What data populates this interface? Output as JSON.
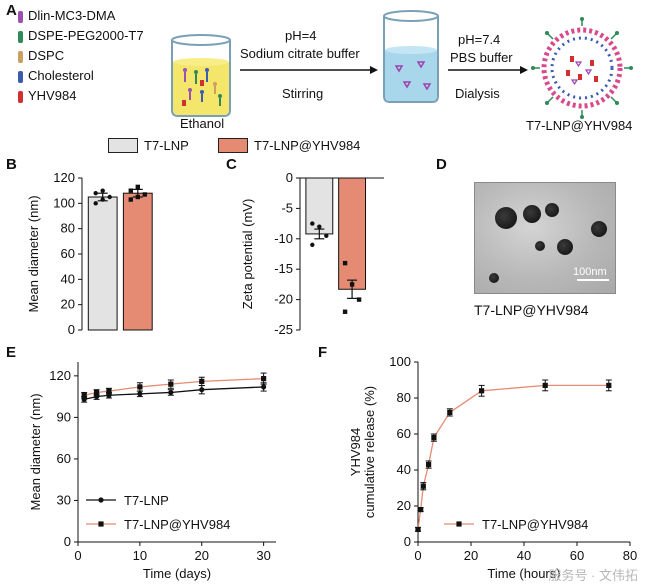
{
  "panel_letters": {
    "a": "A",
    "b": "B",
    "c": "C",
    "d": "D",
    "e": "E",
    "f": "F"
  },
  "panel_a": {
    "components": [
      {
        "name": "Dlin-MC3-DMA",
        "color": "#9b4fb0"
      },
      {
        "name": "DSPE-PEG2000-T7",
        "color": "#2e8b57"
      },
      {
        "name": "DSPC",
        "color": "#c8a060"
      },
      {
        "name": "Cholesterol",
        "color": "#3b5bb0"
      },
      {
        "name": "YHV984",
        "color": "#d03030"
      }
    ],
    "ethanol_label": "Ethanol",
    "step1_top1": "pH=4",
    "step1_top2": "Sodium citrate buffer",
    "step1_bottom": "Stirring",
    "step2_top1": "pH=7.4",
    "step2_top2": "PBS buffer",
    "step2_bottom": "Dialysis",
    "product_label": "T7-LNP@YHV984"
  },
  "legend": {
    "items": [
      {
        "label": "T7-LNP",
        "color": "#e3e3e3"
      },
      {
        "label": "T7-LNP@YHV984",
        "color": "#e58b73"
      }
    ]
  },
  "tem": {
    "scale_label": "100nm",
    "caption": "T7-LNP@YHV984"
  },
  "watermark": "服务号 · 文伟拓",
  "chart_data": [
    {
      "id": "B",
      "type": "bar",
      "categories": [
        "T7-LNP",
        "T7-LNP@YHV984"
      ],
      "values": [
        105,
        108
      ],
      "errors": [
        3,
        3
      ],
      "points": [
        [
          100,
          103,
          105,
          108,
          110
        ],
        [
          103,
          105,
          107,
          110,
          113
        ]
      ],
      "colors": [
        "#e3e3e3",
        "#e58b73"
      ],
      "ylabel": "Mean diameter (nm)",
      "ylim": [
        0,
        120
      ],
      "yticks": [
        0,
        20,
        40,
        60,
        80,
        100,
        120
      ]
    },
    {
      "id": "C",
      "type": "bar",
      "categories": [
        "T7-LNP",
        "T7-LNP@YHV984"
      ],
      "values": [
        -9.2,
        -18.3
      ],
      "errors": [
        0.8,
        1.5
      ],
      "points": [
        [
          -7.5,
          -8.0,
          -9.5,
          -11.0
        ],
        [
          -14.0,
          -17.5,
          -20.0,
          -22.0
        ]
      ],
      "colors": [
        "#e3e3e3",
        "#e58b73"
      ],
      "ylabel": "Zeta potential (mV)",
      "ylim": [
        -25,
        0
      ],
      "yticks": [
        0,
        -5,
        -10,
        -15,
        -20,
        -25
      ]
    },
    {
      "id": "E",
      "type": "line",
      "xlabel": "Time (days)",
      "ylabel": "Mean diameter (nm)",
      "xlim": [
        0,
        32
      ],
      "ylim": [
        0,
        130
      ],
      "xticks": [
        0,
        10,
        20,
        30
      ],
      "yticks": [
        0,
        30,
        60,
        90,
        120
      ],
      "legend_position": "bottom-left",
      "series": [
        {
          "name": "T7-LNP",
          "color": "#111111",
          "marker": "circle",
          "x": [
            1,
            3,
            5,
            10,
            15,
            20,
            30
          ],
          "y": [
            103,
            105,
            106,
            107,
            108,
            110,
            112
          ],
          "err": [
            2,
            2,
            2,
            2,
            2,
            3,
            3
          ]
        },
        {
          "name": "T7-LNP@YHV984",
          "color": "#e58b73",
          "marker": "square",
          "x": [
            1,
            3,
            5,
            10,
            15,
            20,
            30
          ],
          "y": [
            106,
            108,
            109,
            112,
            114,
            116,
            118
          ],
          "err": [
            2,
            2,
            2,
            3,
            3,
            3,
            4
          ]
        }
      ]
    },
    {
      "id": "F",
      "type": "line",
      "xlabel": "Time (hours)",
      "ylabel_line1": "YHV984",
      "ylabel_line2": "cumulative release (%)",
      "xlim": [
        0,
        80
      ],
      "ylim": [
        0,
        100
      ],
      "xticks": [
        0,
        20,
        40,
        60,
        80
      ],
      "yticks": [
        0,
        20,
        40,
        60,
        80,
        100
      ],
      "legend_position": "bottom-right",
      "series": [
        {
          "name": "T7-LNP@YHV984",
          "color": "#e58b73",
          "marker": "square",
          "x": [
            0,
            1,
            2,
            4,
            6,
            12,
            24,
            48,
            72
          ],
          "y": [
            7,
            18,
            31,
            43,
            58,
            72,
            84,
            87,
            87
          ],
          "err": [
            1,
            1,
            2,
            2,
            2,
            2,
            3,
            3,
            3
          ]
        }
      ]
    }
  ]
}
